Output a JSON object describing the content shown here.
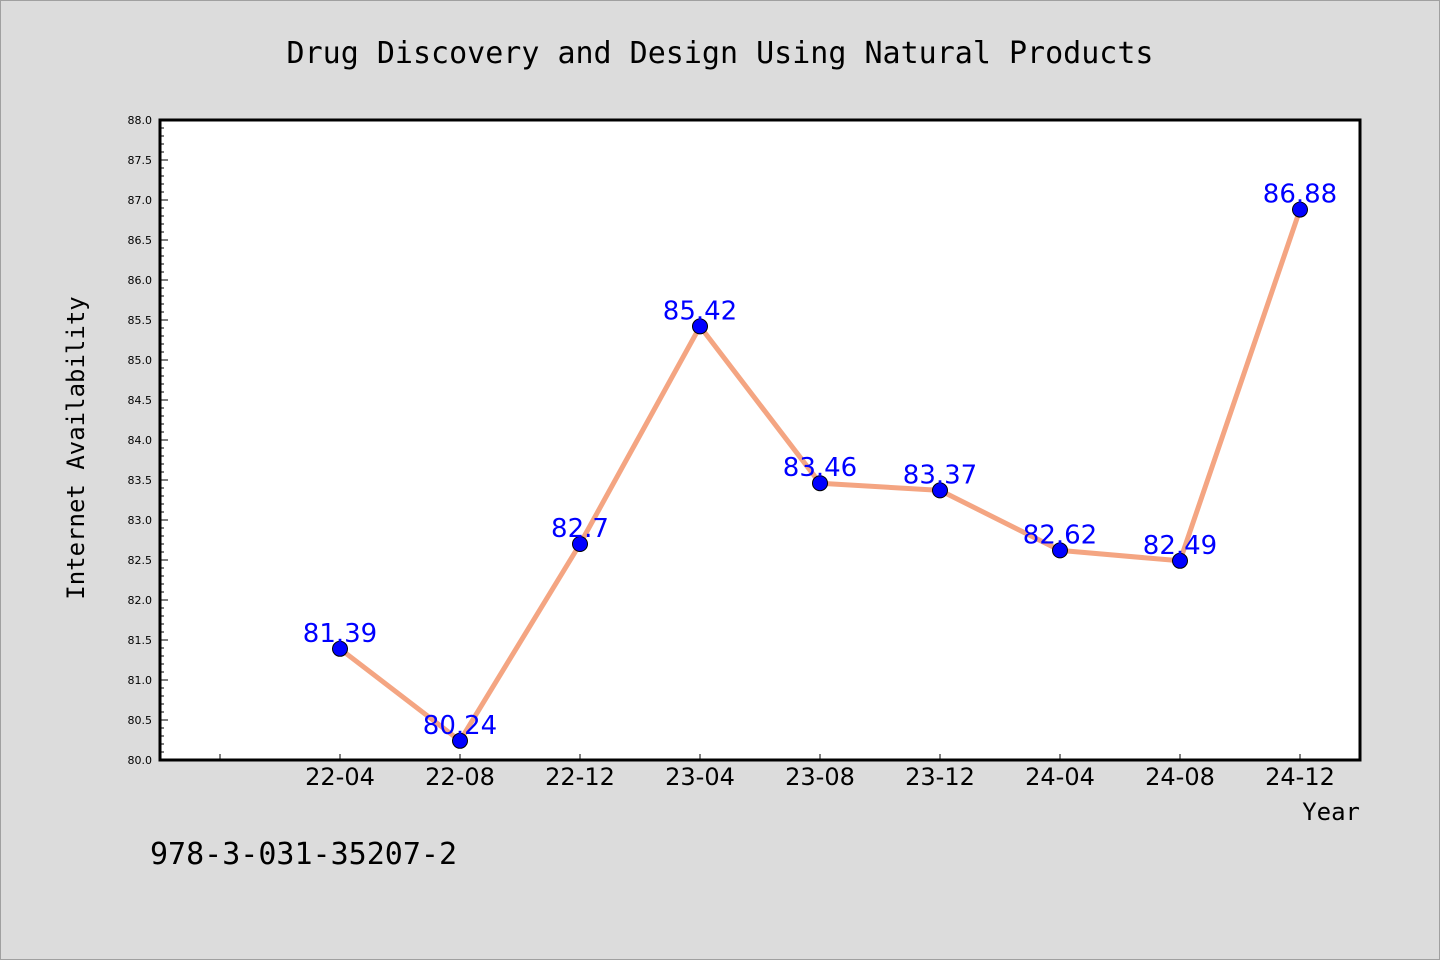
{
  "chart_data": {
    "type": "line",
    "title": "Drug Discovery and Design Using Natural Products",
    "xlabel": "Year",
    "ylabel": "Internet Availability",
    "categories": [
      "22-04",
      "22-08",
      "22-12",
      "23-04",
      "23-08",
      "23-12",
      "24-04",
      "24-08",
      "24-12"
    ],
    "series": [
      {
        "values": [
          81.39,
          80.24,
          82.7,
          85.42,
          83.46,
          83.37,
          82.62,
          82.49,
          86.88
        ],
        "data_labels": [
          "81.39",
          "80.24",
          "82.7",
          "85.42",
          "83.46",
          "83.37",
          "82.62",
          "82.49",
          "86.88"
        ],
        "line_color": "#f4a582",
        "marker_color": "#0000ff"
      }
    ],
    "ylim": [
      80.0,
      88.0
    ],
    "yticks": [
      "80.0",
      "80.5",
      "81.0",
      "81.5",
      "82.0",
      "82.5",
      "83.0",
      "83.5",
      "84.0",
      "84.5",
      "85.0",
      "85.5",
      "86.0",
      "86.5",
      "87.0",
      "87.5",
      "88.0"
    ],
    "grid": false,
    "legend": "none"
  },
  "footer": {
    "isbn": "978-3-031-35207-2"
  },
  "colors": {
    "background": "#dcdcdc",
    "plot_area": "#ffffff",
    "line": "#f4a582",
    "marker": "#0000ff",
    "label": "#0000ff"
  }
}
